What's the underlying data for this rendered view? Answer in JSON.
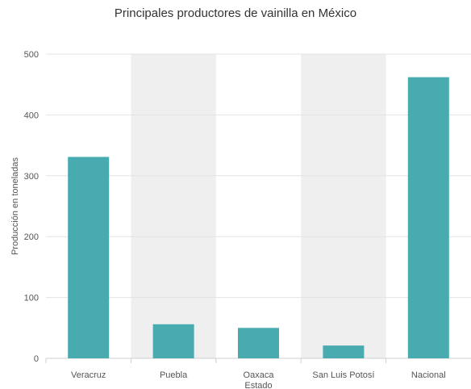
{
  "chart_data": {
    "type": "bar",
    "title": "Principales productores de vainilla en México",
    "xlabel": "Estado",
    "ylabel": "Producción en toneladas",
    "categories": [
      "Veracruz",
      "Puebla",
      "Oaxaca",
      "San Luis Potosí",
      "Nacional"
    ],
    "values": [
      331,
      56,
      50,
      21,
      462
    ],
    "ylim": [
      0,
      500
    ],
    "yticks": [
      0,
      100,
      200,
      300,
      400,
      500
    ],
    "grid": true,
    "alternate_band_color": "#efefef",
    "bar_color": "#47abb0"
  }
}
